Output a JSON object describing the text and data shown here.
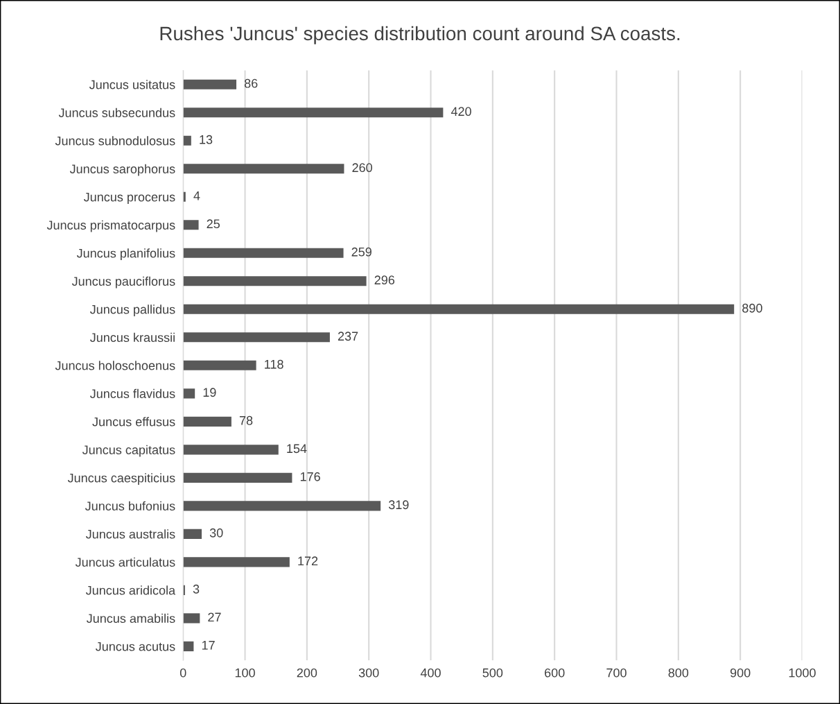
{
  "chart_data": {
    "type": "bar",
    "title": "Rushes 'Juncus' species distribution count around SA coasts.",
    "orientation": "horizontal",
    "categories": [
      "Juncus usitatus",
      "Juncus subsecundus",
      "Juncus subnodulosus",
      "Juncus sarophorus",
      "Juncus procerus",
      "Juncus prismatocarpus",
      "Juncus planifolius",
      "Juncus pauciflorus",
      "Juncus pallidus",
      "Juncus kraussii",
      "Juncus holoschoenus",
      "Juncus flavidus",
      "Juncus effusus",
      "Juncus capitatus",
      "Juncus caespiticius",
      "Juncus bufonius",
      "Juncus australis",
      "Juncus articulatus",
      "Juncus aridicola",
      "Juncus amabilis",
      "Juncus acutus"
    ],
    "values": [
      86,
      420,
      13,
      260,
      4,
      25,
      259,
      296,
      890,
      237,
      118,
      19,
      78,
      154,
      176,
      319,
      30,
      172,
      3,
      27,
      17
    ],
    "color": "#595959",
    "data_labels": true,
    "grid": "x",
    "xlim": [
      0,
      1000
    ],
    "xticks": [
      0,
      100,
      200,
      300,
      400,
      500,
      600,
      700,
      800,
      900,
      1000
    ]
  }
}
